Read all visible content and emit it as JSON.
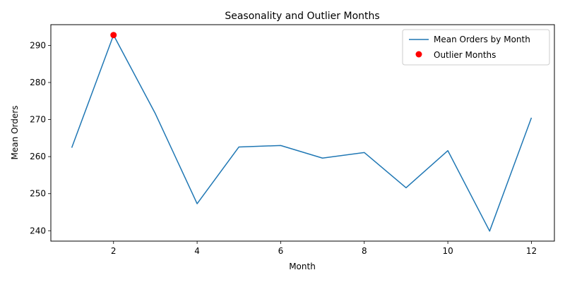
{
  "chart_data": {
    "type": "line",
    "title": "Seasonality and Outlier Months",
    "xlabel": "Month",
    "ylabel": "Mean Orders",
    "xlim": [
      0.5,
      12.55
    ],
    "ylim": [
      237.2,
      295.6
    ],
    "xticks": [
      2,
      4,
      6,
      8,
      10,
      12
    ],
    "yticks": [
      240,
      250,
      260,
      270,
      280,
      290
    ],
    "grid": false,
    "legend_position": "top-right",
    "series": [
      {
        "name": "Mean Orders by Month",
        "type": "line",
        "color": "#1f77b4",
        "x": [
          1,
          2,
          3,
          4,
          5,
          6,
          7,
          8,
          9,
          10,
          11,
          12
        ],
        "y": [
          262.4,
          292.8,
          271.6,
          247.3,
          262.6,
          263.0,
          259.6,
          261.1,
          251.6,
          261.6,
          239.9,
          270.5
        ]
      },
      {
        "name": "Outlier Months",
        "type": "scatter",
        "color": "#ff0000",
        "x": [
          2
        ],
        "y": [
          292.8
        ]
      }
    ]
  }
}
